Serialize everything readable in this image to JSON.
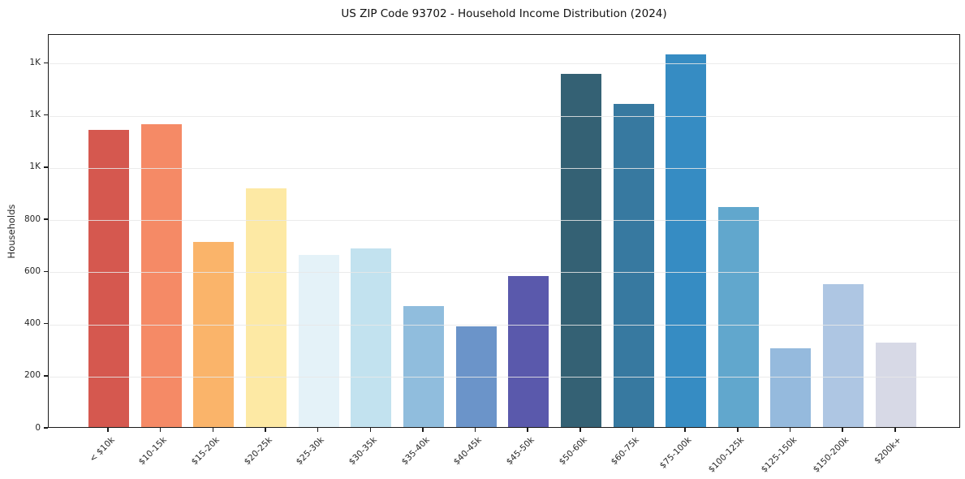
{
  "chart_data": {
    "type": "bar",
    "title": "US ZIP Code 93702 - Household Income Distribution (2024)",
    "xlabel": "",
    "ylabel": "Households",
    "categories": [
      "< $10k",
      "$10-15k",
      "$15-20k",
      "$20-25k",
      "$25-30k",
      "$30-35k",
      "$35-40k",
      "$40-45k",
      "$45-50k",
      "$50-60k",
      "$60-75k",
      "$75-100k",
      "$100-125k",
      "$125-150k",
      "$150-200k",
      "$200k+"
    ],
    "values": [
      1140,
      1160,
      710,
      915,
      660,
      685,
      465,
      385,
      580,
      1355,
      1240,
      1430,
      845,
      303,
      548,
      325
    ],
    "bar_colors": [
      "#d5584f",
      "#f58a66",
      "#fab46a",
      "#fde9a4",
      "#e4f2f8",
      "#c2e2ef",
      "#90bddd",
      "#6b94c9",
      "#5a59ac",
      "#346174",
      "#3779a0",
      "#368cc3",
      "#61a7cd",
      "#95badd",
      "#aec6e3",
      "#d7d9e6"
    ],
    "ylim": [
      0,
      1510
    ],
    "yticks": {
      "step": 200,
      "max": 1400,
      "labels": [
        "0",
        "200",
        "400",
        "600",
        "800",
        "1K",
        "1K",
        "1K"
      ]
    },
    "grid": "horizontal gridlines on",
    "legend": "none",
    "x_tick_rotation_deg": 45
  }
}
